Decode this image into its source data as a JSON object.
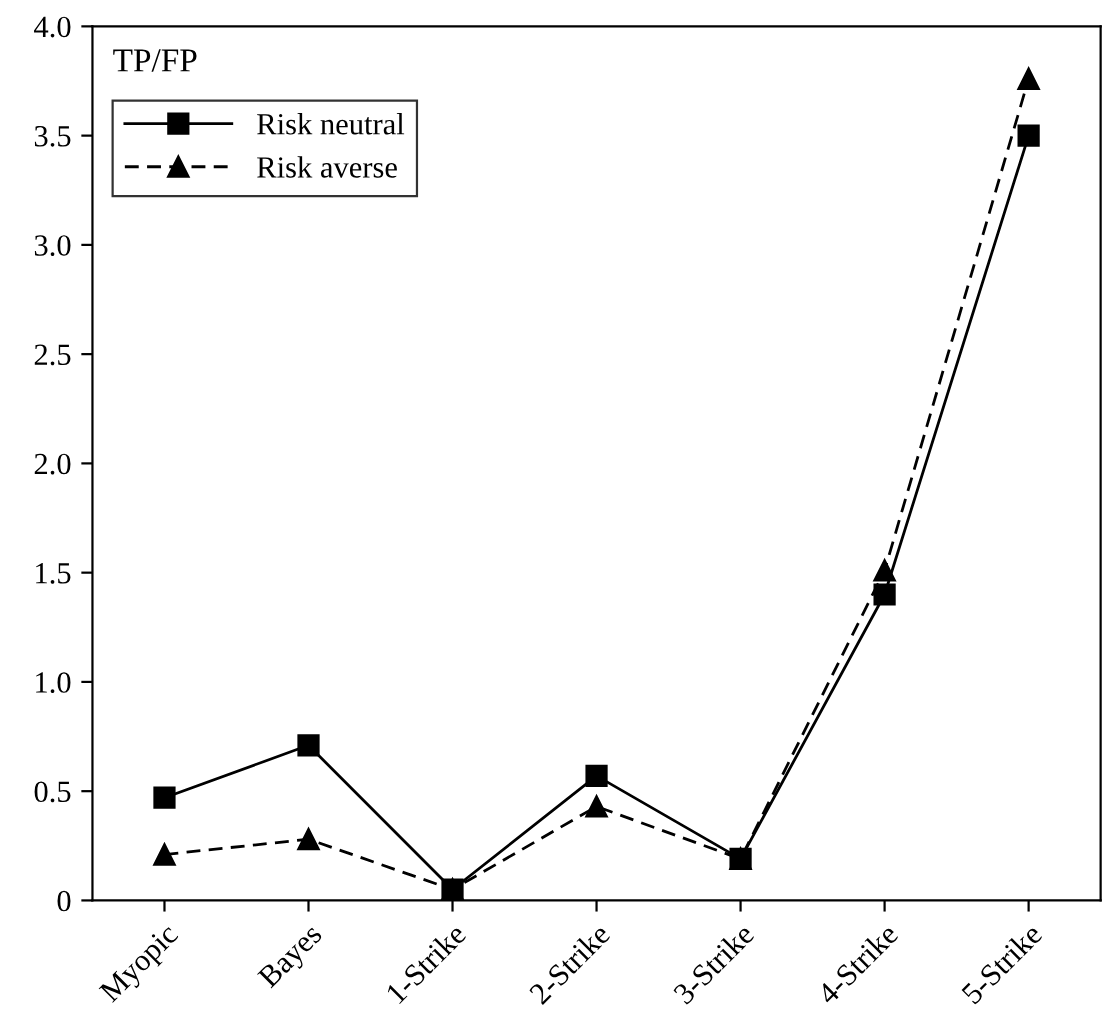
{
  "chart_data": {
    "type": "line",
    "ylabel": "TP/FP",
    "categories": [
      "Myopic",
      "Bayes",
      "1-Strike",
      "2-Strike",
      "3-Strike",
      "4-Strike",
      "5-Strike"
    ],
    "series": [
      {
        "name": "Risk neutral",
        "color": "#000000",
        "marker": "square",
        "line_style": "solid",
        "values": [
          0.47,
          0.71,
          0.05,
          0.57,
          0.19,
          1.4,
          3.5
        ]
      },
      {
        "name": "Risk averse",
        "color": "#000000",
        "marker": "triangle",
        "line_style": "dashed",
        "values": [
          0.21,
          0.28,
          0.05,
          0.43,
          0.19,
          1.51,
          3.76
        ]
      }
    ],
    "ylim": [
      0,
      4.0
    ],
    "yticks": [
      0,
      {
        "value": 0.5,
        "label": "0.5"
      },
      {
        "value": 1.0,
        "label": "1.0"
      },
      {
        "value": 1.5,
        "label": "1.5"
      },
      {
        "value": 2.0,
        "label": "2.0"
      },
      {
        "value": 2.5,
        "label": "2.5"
      },
      {
        "value": 3.0,
        "label": "3.0"
      },
      {
        "value": 3.5,
        "label": "3.5"
      },
      {
        "value": 4.0,
        "label": "4.0"
      }
    ],
    "grid": false,
    "legend": "top left"
  }
}
